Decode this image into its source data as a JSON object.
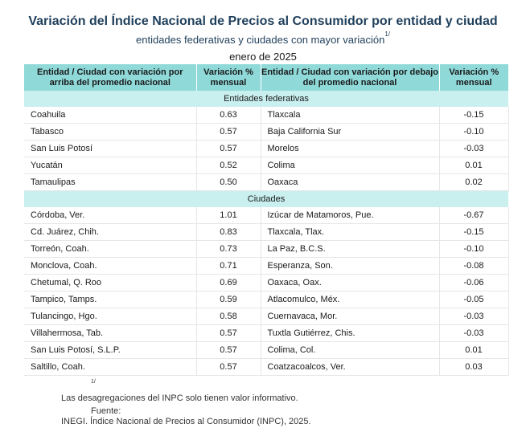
{
  "title": "Variación del Índice Nacional de Precios al Consumidor por entidad y ciudad",
  "subtitle": "entidades federativas y ciudades con mayor variación",
  "subtitle_note": "1/",
  "period": "enero de 2025",
  "headers": {
    "col1": "Entidad / Ciudad con variación por arriba del promedio nacional",
    "col2": "Variación % mensual",
    "col3": "Entidad / Ciudad con variación por debajo del promedio nacional",
    "col4": "Variación % mensual"
  },
  "section_states": "Entidades federativas",
  "section_cities": "Ciudades",
  "states": [
    {
      "above": "Coahuila",
      "above_val": "0.63",
      "below": "Tlaxcala",
      "below_val": "-0.15"
    },
    {
      "above": "Tabasco",
      "above_val": "0.57",
      "below": "Baja California Sur",
      "below_val": "-0.10"
    },
    {
      "above": "San Luis Potosí",
      "above_val": "0.57",
      "below": "Morelos",
      "below_val": "-0.03"
    },
    {
      "above": "Yucatán",
      "above_val": "0.52",
      "below": "Colima",
      "below_val": "0.01"
    },
    {
      "above": "Tamaulipas",
      "above_val": "0.50",
      "below": "Oaxaca",
      "below_val": "0.02"
    }
  ],
  "cities": [
    {
      "above": "Córdoba, Ver.",
      "above_val": "1.01",
      "below": "Izúcar de Matamoros, Pue.",
      "below_val": "-0.67"
    },
    {
      "above": "Cd. Juárez, Chih.",
      "above_val": "0.83",
      "below": "Tlaxcala, Tlax.",
      "below_val": "-0.15"
    },
    {
      "above": "Torreón, Coah.",
      "above_val": "0.73",
      "below": "La Paz, B.C.S.",
      "below_val": "-0.10"
    },
    {
      "above": "Monclova, Coah.",
      "above_val": "0.71",
      "below": "Esperanza, Son.",
      "below_val": "-0.08"
    },
    {
      "above": "Chetumal, Q. Roo",
      "above_val": "0.69",
      "below": "Oaxaca, Oax.",
      "below_val": "-0.06"
    },
    {
      "above": "Tampico, Tamps.",
      "above_val": "0.59",
      "below": "Atlacomulco, Méx.",
      "below_val": "-0.05"
    },
    {
      "above": "Tulancingo, Hgo.",
      "above_val": "0.58",
      "below": "Cuernavaca, Mor.",
      "below_val": "-0.03"
    },
    {
      "above": "Villahermosa, Tab.",
      "above_val": "0.57",
      "below": "Tuxtla Gutiérrez, Chis.",
      "below_val": "-0.03"
    },
    {
      "above": "San Luis Potosí, S.L.P.",
      "above_val": "0.57",
      "below": "Colima, Col.",
      "below_val": "0.01"
    },
    {
      "above": "Saltillo, Coah.",
      "above_val": "0.57",
      "below": "Coatzacoalcos, Ver.",
      "below_val": "0.03"
    }
  ],
  "footnote_mark": "1/",
  "footnote_text": "Las desagregaciones del INPC solo tienen valor informativo.",
  "source_label": "Fuente:",
  "source_text": "INEGI. Índice Nacional de Precios al Consumidor (INPC), 2025."
}
